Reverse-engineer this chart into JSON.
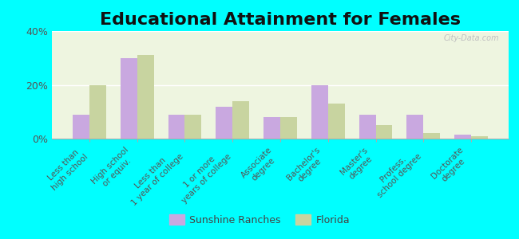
{
  "title": "Educational Attainment for Females",
  "categories": [
    "Less than\nhigh school",
    "High school\nor equiv.",
    "Less than\n1 year of college",
    "1 or more\nyears of college",
    "Associate\ndegree",
    "Bachelor's\ndegree",
    "Master's\ndegree",
    "Profess.\nschool degree",
    "Doctorate\ndegree"
  ],
  "sunshine_ranches": [
    9,
    30,
    9,
    12,
    8,
    20,
    9,
    9,
    1.5
  ],
  "florida": [
    20,
    31,
    9,
    14,
    8,
    13,
    5,
    2,
    1
  ],
  "sunshine_color": "#c9a8e0",
  "florida_color": "#c8d4a0",
  "background_color": "#00ffff",
  "plot_bg_color": "#eef5e0",
  "ylim": [
    0,
    40
  ],
  "yticks": [
    0,
    20,
    40
  ],
  "ytick_labels": [
    "0%",
    "20%",
    "40%"
  ],
  "title_fontsize": 16,
  "tick_fontsize": 7.5,
  "legend_label_1": "Sunshine Ranches",
  "legend_label_2": "Florida"
}
